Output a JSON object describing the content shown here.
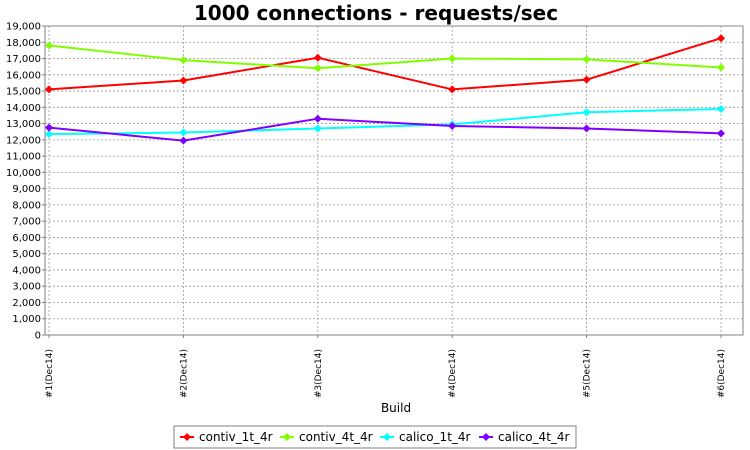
{
  "chart_data": {
    "type": "line",
    "title": "1000 connections - requests/sec",
    "xlabel": "Build",
    "ylabel": "",
    "categories": [
      "#1(Dec14)",
      "#2(Dec14)",
      "#3(Dec14)",
      "#4(Dec14)",
      "#5(Dec14)",
      "#6(Dec14)"
    ],
    "ylim": [
      0,
      19000
    ],
    "ytick_step": 1000,
    "grid": true,
    "legend_position": "bottom",
    "series": [
      {
        "name": "contiv_1t_4r",
        "color": "#ff0000",
        "values": [
          15100,
          15650,
          17050,
          15100,
          15700,
          18250
        ]
      },
      {
        "name": "contiv_4t_4r",
        "color": "#80ff00",
        "values": [
          17800,
          16900,
          16400,
          17000,
          16950,
          16450
        ]
      },
      {
        "name": "calico_1t_4r",
        "color": "#00ffff",
        "values": [
          12350,
          12450,
          12700,
          12950,
          13700,
          13900
        ]
      },
      {
        "name": "calico_4t_4r",
        "color": "#8000ff",
        "values": [
          12750,
          11950,
          13300,
          12850,
          12700,
          12400
        ]
      }
    ]
  }
}
